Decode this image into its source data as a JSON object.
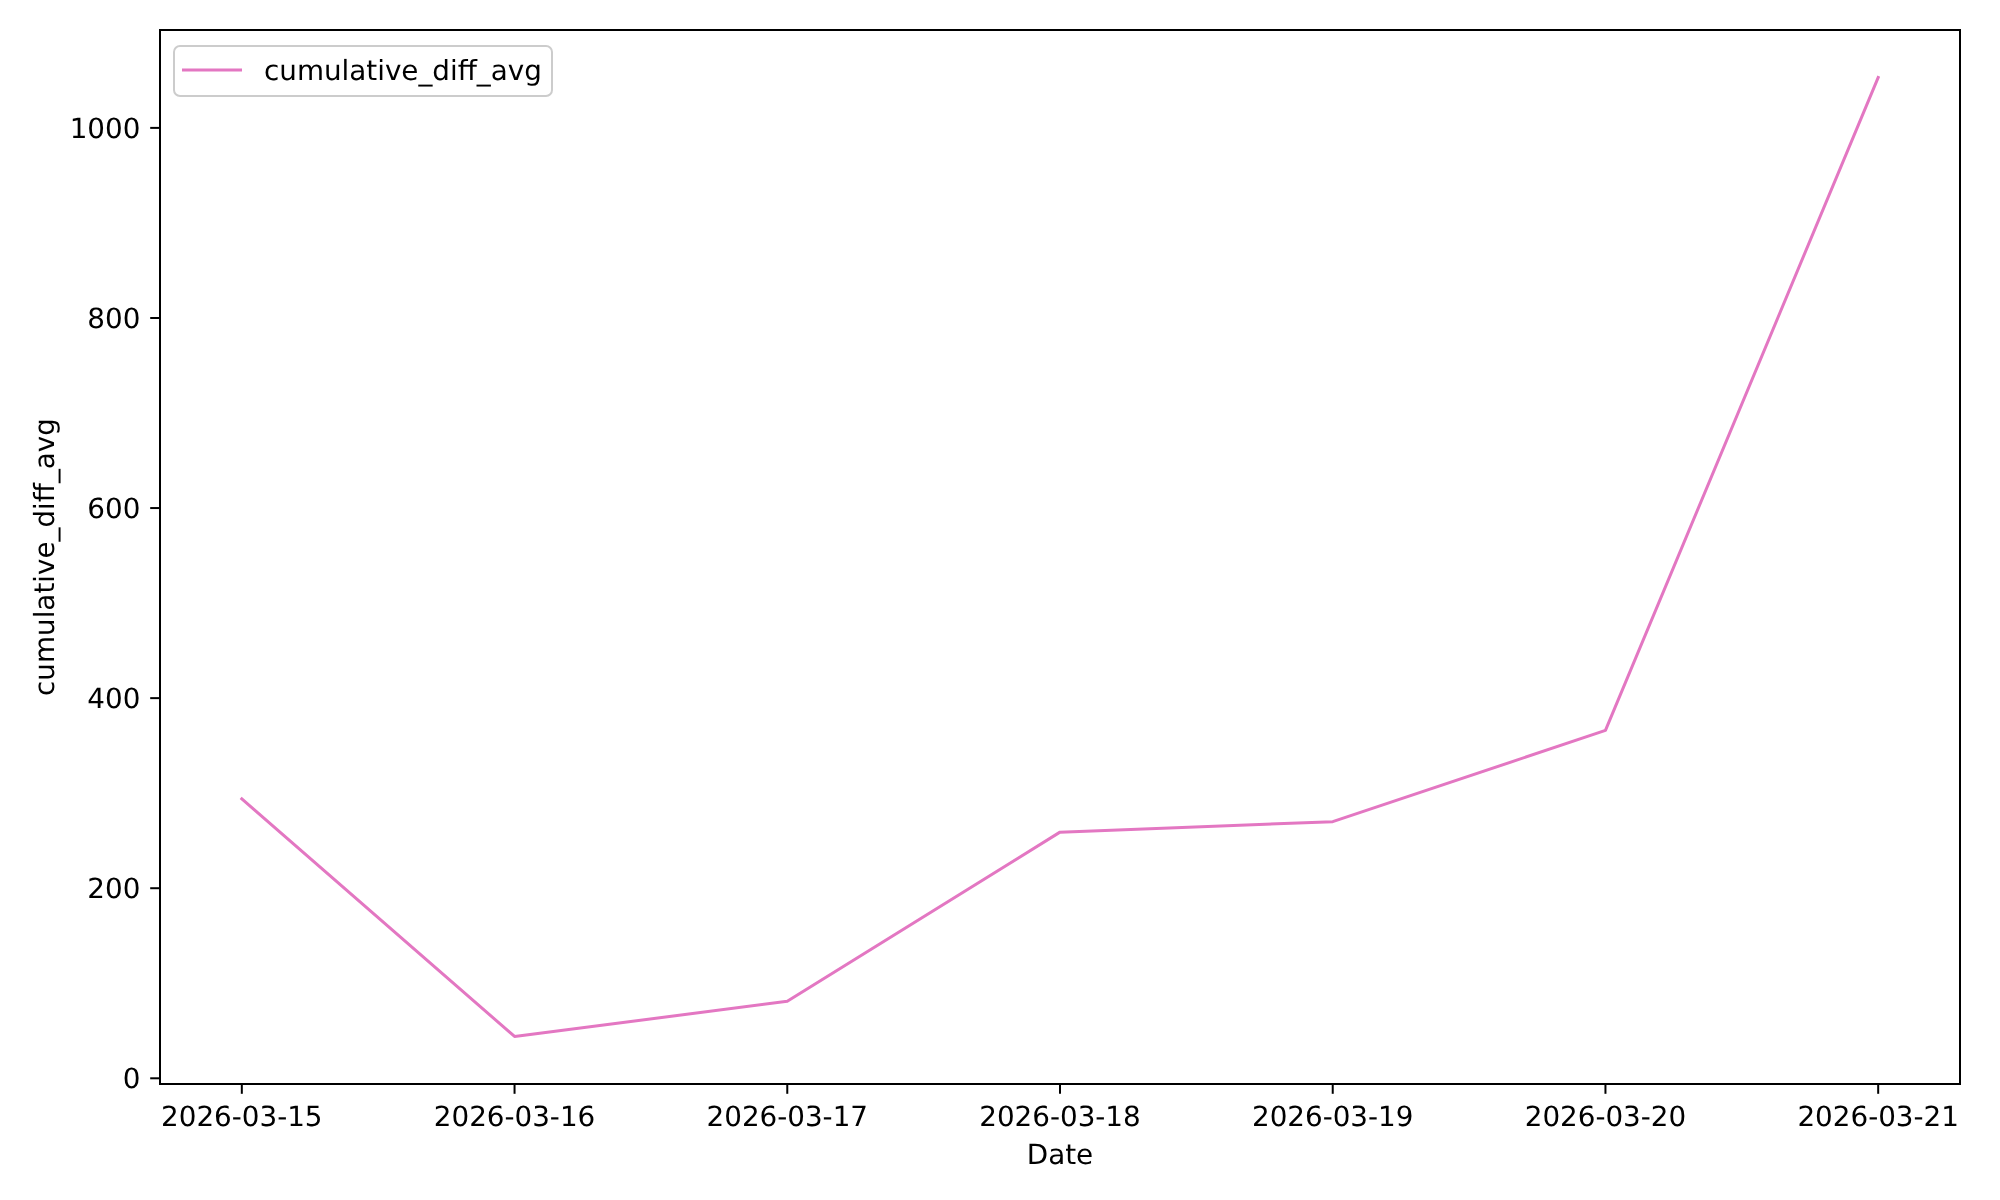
{
  "chart_data": {
    "type": "line",
    "xlabel": "Date",
    "ylabel": "cumulative_diff_avg",
    "x": [
      "2026-03-15",
      "2026-03-16",
      "2026-03-17",
      "2026-03-18",
      "2026-03-19",
      "2026-03-20",
      "2026-03-21"
    ],
    "series": [
      {
        "name": "cumulative_diff_avg",
        "color": "#e377c2",
        "values": [
          294,
          44,
          81,
          259,
          270,
          366,
          1053
        ]
      }
    ],
    "xlim": [
      "2026-03-14T16:48",
      "2026-03-21T07:12"
    ],
    "ylim": [
      -6,
      1103
    ],
    "xticks": [
      "2026-03-15",
      "2026-03-16",
      "2026-03-17",
      "2026-03-18",
      "2026-03-19",
      "2026-03-20",
      "2026-03-21"
    ],
    "yticks": [
      0,
      200,
      400,
      600,
      800,
      1000
    ],
    "legend": "top left",
    "grid": false,
    "marker": "none",
    "line_style": "solid"
  }
}
